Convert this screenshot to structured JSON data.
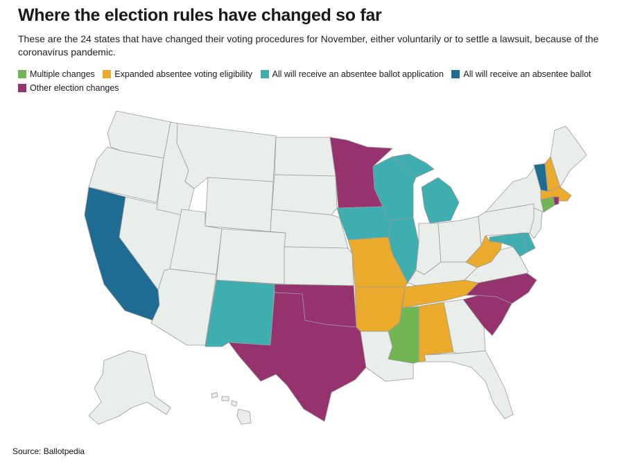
{
  "header": {
    "title": "Where the election rules have changed so far",
    "subtitle": "These are the 24 states that have changed their voting procedures for November, either voluntarily or to settle a lawsuit, because of the coronavirus pandemic."
  },
  "legend": [
    {
      "label": "Multiple changes",
      "color": "#72b653"
    },
    {
      "label": "Expanded absentee voting eligibility",
      "color": "#eaaa2c"
    },
    {
      "label": "All will receive an absentee ballot application",
      "color": "#3eaeb1"
    },
    {
      "label": "All will receive an absentee ballot",
      "color": "#1e6b94"
    },
    {
      "label": "Other election changes",
      "color": "#96326e"
    }
  ],
  "default_color": "#e9eeea",
  "categories": {
    "multiple": [
      "Connecticut",
      "Mississippi"
    ],
    "expanded_eligibility": [
      "Missouri",
      "Arkansas",
      "Tennessee",
      "Alabama",
      "West Virginia",
      "New Hampshire",
      "Massachusetts"
    ],
    "application": [
      "New Mexico",
      "Iowa",
      "Wisconsin",
      "Illinois",
      "Michigan",
      "Maryland",
      "Delaware"
    ],
    "ballot": [
      "California",
      "Vermont"
    ],
    "other": [
      "Texas",
      "Oklahoma",
      "Minnesota",
      "North Carolina",
      "South Carolina",
      "Rhode Island"
    ]
  },
  "footer": {
    "source": "Source: Ballotpedia"
  }
}
